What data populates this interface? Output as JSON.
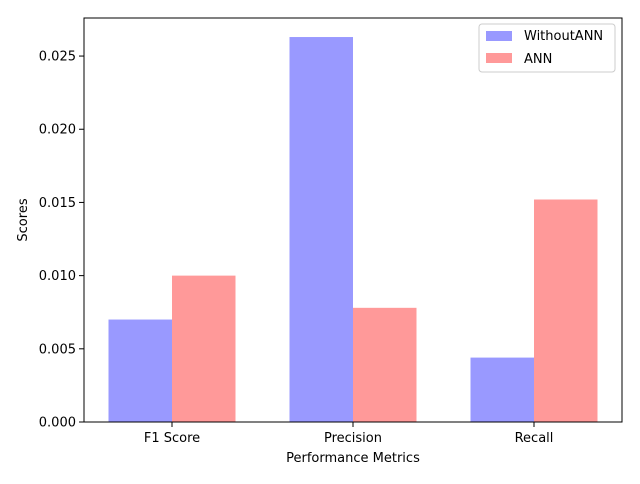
{
  "chart_data": {
    "type": "bar",
    "title": "",
    "xlabel": "Performance Metrics",
    "ylabel": "Scores",
    "categories": [
      "F1 Score",
      "Precision",
      "Recall"
    ],
    "series": [
      {
        "name": "WithoutANN",
        "values": [
          0.007,
          0.0263,
          0.0044
        ],
        "color": "#9999ff"
      },
      {
        "name": "ANN",
        "values": [
          0.01,
          0.0078,
          0.0152
        ],
        "color": "#ff9999"
      }
    ],
    "ylim": [
      0,
      0.0276
    ],
    "yticks": [
      "0.000",
      "0.005",
      "0.010",
      "0.015",
      "0.020",
      "0.025"
    ],
    "grid": false,
    "legend_position": "top-right"
  }
}
